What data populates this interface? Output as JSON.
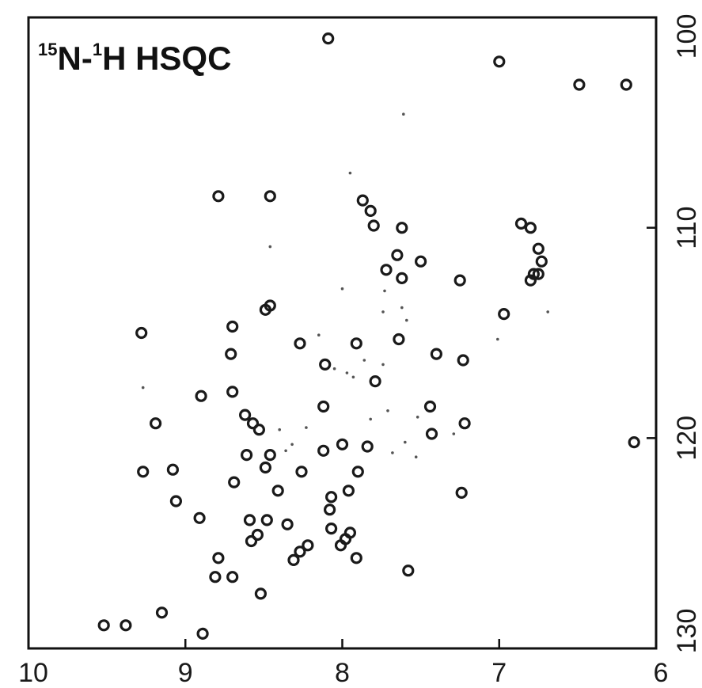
{
  "chart_data": {
    "type": "scatter",
    "title": {
      "sup1": "15",
      "part1": "N-",
      "sup2": "1",
      "part2": "H HSQC"
    },
    "xlabel": "",
    "ylabel": "",
    "xlim": [
      10,
      6
    ],
    "ylim": [
      100,
      130
    ],
    "x_reversed": true,
    "x_ticks": [
      {
        "value": 10,
        "label": "10"
      },
      {
        "value": 9,
        "label": "9"
      },
      {
        "value": 8,
        "label": "8"
      },
      {
        "value": 7,
        "label": "7"
      },
      {
        "value": 6,
        "label": "6"
      }
    ],
    "y_ticks": [
      {
        "value": 100,
        "label": "100"
      },
      {
        "value": 110,
        "label": "110"
      },
      {
        "value": 120,
        "label": "120"
      },
      {
        "value": 130,
        "label": "130"
      }
    ],
    "x_axis_position": "bottom",
    "y_axis_position": "right",
    "grid": false,
    "legend": "none",
    "colors": {
      "peak": "#1a1a1a",
      "axis": "#111111"
    },
    "peaks": [
      {
        "x": 8.09,
        "y": 101.0
      },
      {
        "x": 7.0,
        "y": 102.1
      },
      {
        "x": 6.49,
        "y": 103.2
      },
      {
        "x": 6.19,
        "y": 103.2
      },
      {
        "x": 8.79,
        "y": 108.5
      },
      {
        "x": 8.46,
        "y": 108.5
      },
      {
        "x": 7.87,
        "y": 108.7
      },
      {
        "x": 7.82,
        "y": 109.2
      },
      {
        "x": 7.8,
        "y": 109.9
      },
      {
        "x": 7.62,
        "y": 110.0
      },
      {
        "x": 6.86,
        "y": 109.8
      },
      {
        "x": 6.8,
        "y": 110.0
      },
      {
        "x": 6.75,
        "y": 111.0
      },
      {
        "x": 6.73,
        "y": 111.6
      },
      {
        "x": 6.78,
        "y": 112.2
      },
      {
        "x": 7.65,
        "y": 111.3
      },
      {
        "x": 7.5,
        "y": 111.6
      },
      {
        "x": 7.72,
        "y": 112.0
      },
      {
        "x": 7.62,
        "y": 112.4
      },
      {
        "x": 7.25,
        "y": 112.5
      },
      {
        "x": 6.8,
        "y": 112.5
      },
      {
        "x": 6.75,
        "y": 112.2
      },
      {
        "x": 8.46,
        "y": 113.7
      },
      {
        "x": 8.49,
        "y": 113.9
      },
      {
        "x": 6.97,
        "y": 114.1
      },
      {
        "x": 9.28,
        "y": 115.0
      },
      {
        "x": 8.7,
        "y": 114.7
      },
      {
        "x": 8.27,
        "y": 115.5
      },
      {
        "x": 7.91,
        "y": 115.5
      },
      {
        "x": 7.64,
        "y": 115.3
      },
      {
        "x": 8.71,
        "y": 116.0
      },
      {
        "x": 7.4,
        "y": 116.0
      },
      {
        "x": 7.23,
        "y": 116.3
      },
      {
        "x": 8.11,
        "y": 116.5
      },
      {
        "x": 7.79,
        "y": 117.3
      },
      {
        "x": 8.9,
        "y": 118.0
      },
      {
        "x": 8.7,
        "y": 117.8
      },
      {
        "x": 8.12,
        "y": 118.5
      },
      {
        "x": 7.44,
        "y": 118.5
      },
      {
        "x": 9.19,
        "y": 119.3
      },
      {
        "x": 8.62,
        "y": 118.9
      },
      {
        "x": 8.57,
        "y": 119.3
      },
      {
        "x": 8.53,
        "y": 119.6
      },
      {
        "x": 7.22,
        "y": 119.3
      },
      {
        "x": 7.43,
        "y": 119.8
      },
      {
        "x": 8.0,
        "y": 120.3
      },
      {
        "x": 8.12,
        "y": 120.6
      },
      {
        "x": 7.84,
        "y": 120.4
      },
      {
        "x": 8.61,
        "y": 120.8
      },
      {
        "x": 8.46,
        "y": 120.8
      },
      {
        "x": 9.27,
        "y": 121.6
      },
      {
        "x": 9.08,
        "y": 121.5
      },
      {
        "x": 8.49,
        "y": 121.4
      },
      {
        "x": 8.26,
        "y": 121.6
      },
      {
        "x": 7.9,
        "y": 121.6
      },
      {
        "x": 8.69,
        "y": 122.1
      },
      {
        "x": 8.41,
        "y": 122.5
      },
      {
        "x": 7.96,
        "y": 122.5
      },
      {
        "x": 8.07,
        "y": 122.8
      },
      {
        "x": 7.24,
        "y": 122.6
      },
      {
        "x": 9.06,
        "y": 123.0
      },
      {
        "x": 8.08,
        "y": 123.4
      },
      {
        "x": 8.91,
        "y": 123.8
      },
      {
        "x": 8.59,
        "y": 123.9
      },
      {
        "x": 8.48,
        "y": 123.9
      },
      {
        "x": 8.35,
        "y": 124.1
      },
      {
        "x": 8.07,
        "y": 124.3
      },
      {
        "x": 7.95,
        "y": 124.5
      },
      {
        "x": 8.54,
        "y": 124.6
      },
      {
        "x": 8.58,
        "y": 124.9
      },
      {
        "x": 7.98,
        "y": 124.8
      },
      {
        "x": 8.22,
        "y": 125.1
      },
      {
        "x": 8.27,
        "y": 125.4
      },
      {
        "x": 8.01,
        "y": 125.1
      },
      {
        "x": 8.79,
        "y": 125.7
      },
      {
        "x": 8.31,
        "y": 125.8
      },
      {
        "x": 7.91,
        "y": 125.7
      },
      {
        "x": 8.81,
        "y": 126.6
      },
      {
        "x": 8.7,
        "y": 126.6
      },
      {
        "x": 7.58,
        "y": 126.3
      },
      {
        "x": 8.52,
        "y": 127.4
      },
      {
        "x": 9.15,
        "y": 128.3
      },
      {
        "x": 9.52,
        "y": 128.9
      },
      {
        "x": 9.38,
        "y": 128.9
      },
      {
        "x": 8.89,
        "y": 129.3
      },
      {
        "x": 6.14,
        "y": 120.2
      }
    ],
    "minor_peaks": [
      {
        "x": 7.61,
        "y": 104.6
      },
      {
        "x": 7.95,
        "y": 107.4
      },
      {
        "x": 8.46,
        "y": 110.9
      },
      {
        "x": 8.0,
        "y": 112.9
      },
      {
        "x": 7.73,
        "y": 113.0
      },
      {
        "x": 7.74,
        "y": 114.0
      },
      {
        "x": 7.62,
        "y": 113.8
      },
      {
        "x": 7.59,
        "y": 114.4
      },
      {
        "x": 6.69,
        "y": 114.0
      },
      {
        "x": 7.01,
        "y": 115.3
      },
      {
        "x": 8.15,
        "y": 115.1
      },
      {
        "x": 7.86,
        "y": 116.3
      },
      {
        "x": 7.93,
        "y": 117.1
      },
      {
        "x": 7.97,
        "y": 116.9
      },
      {
        "x": 8.05,
        "y": 116.7
      },
      {
        "x": 7.74,
        "y": 116.5
      },
      {
        "x": 9.27,
        "y": 117.6
      },
      {
        "x": 7.71,
        "y": 118.7
      },
      {
        "x": 7.82,
        "y": 119.1
      },
      {
        "x": 8.4,
        "y": 119.6
      },
      {
        "x": 8.23,
        "y": 119.5
      },
      {
        "x": 8.32,
        "y": 120.3
      },
      {
        "x": 8.36,
        "y": 120.6
      },
      {
        "x": 7.68,
        "y": 120.7
      },
      {
        "x": 7.53,
        "y": 120.9
      },
      {
        "x": 7.6,
        "y": 120.2
      },
      {
        "x": 7.52,
        "y": 119.0
      },
      {
        "x": 7.29,
        "y": 119.8
      }
    ]
  }
}
